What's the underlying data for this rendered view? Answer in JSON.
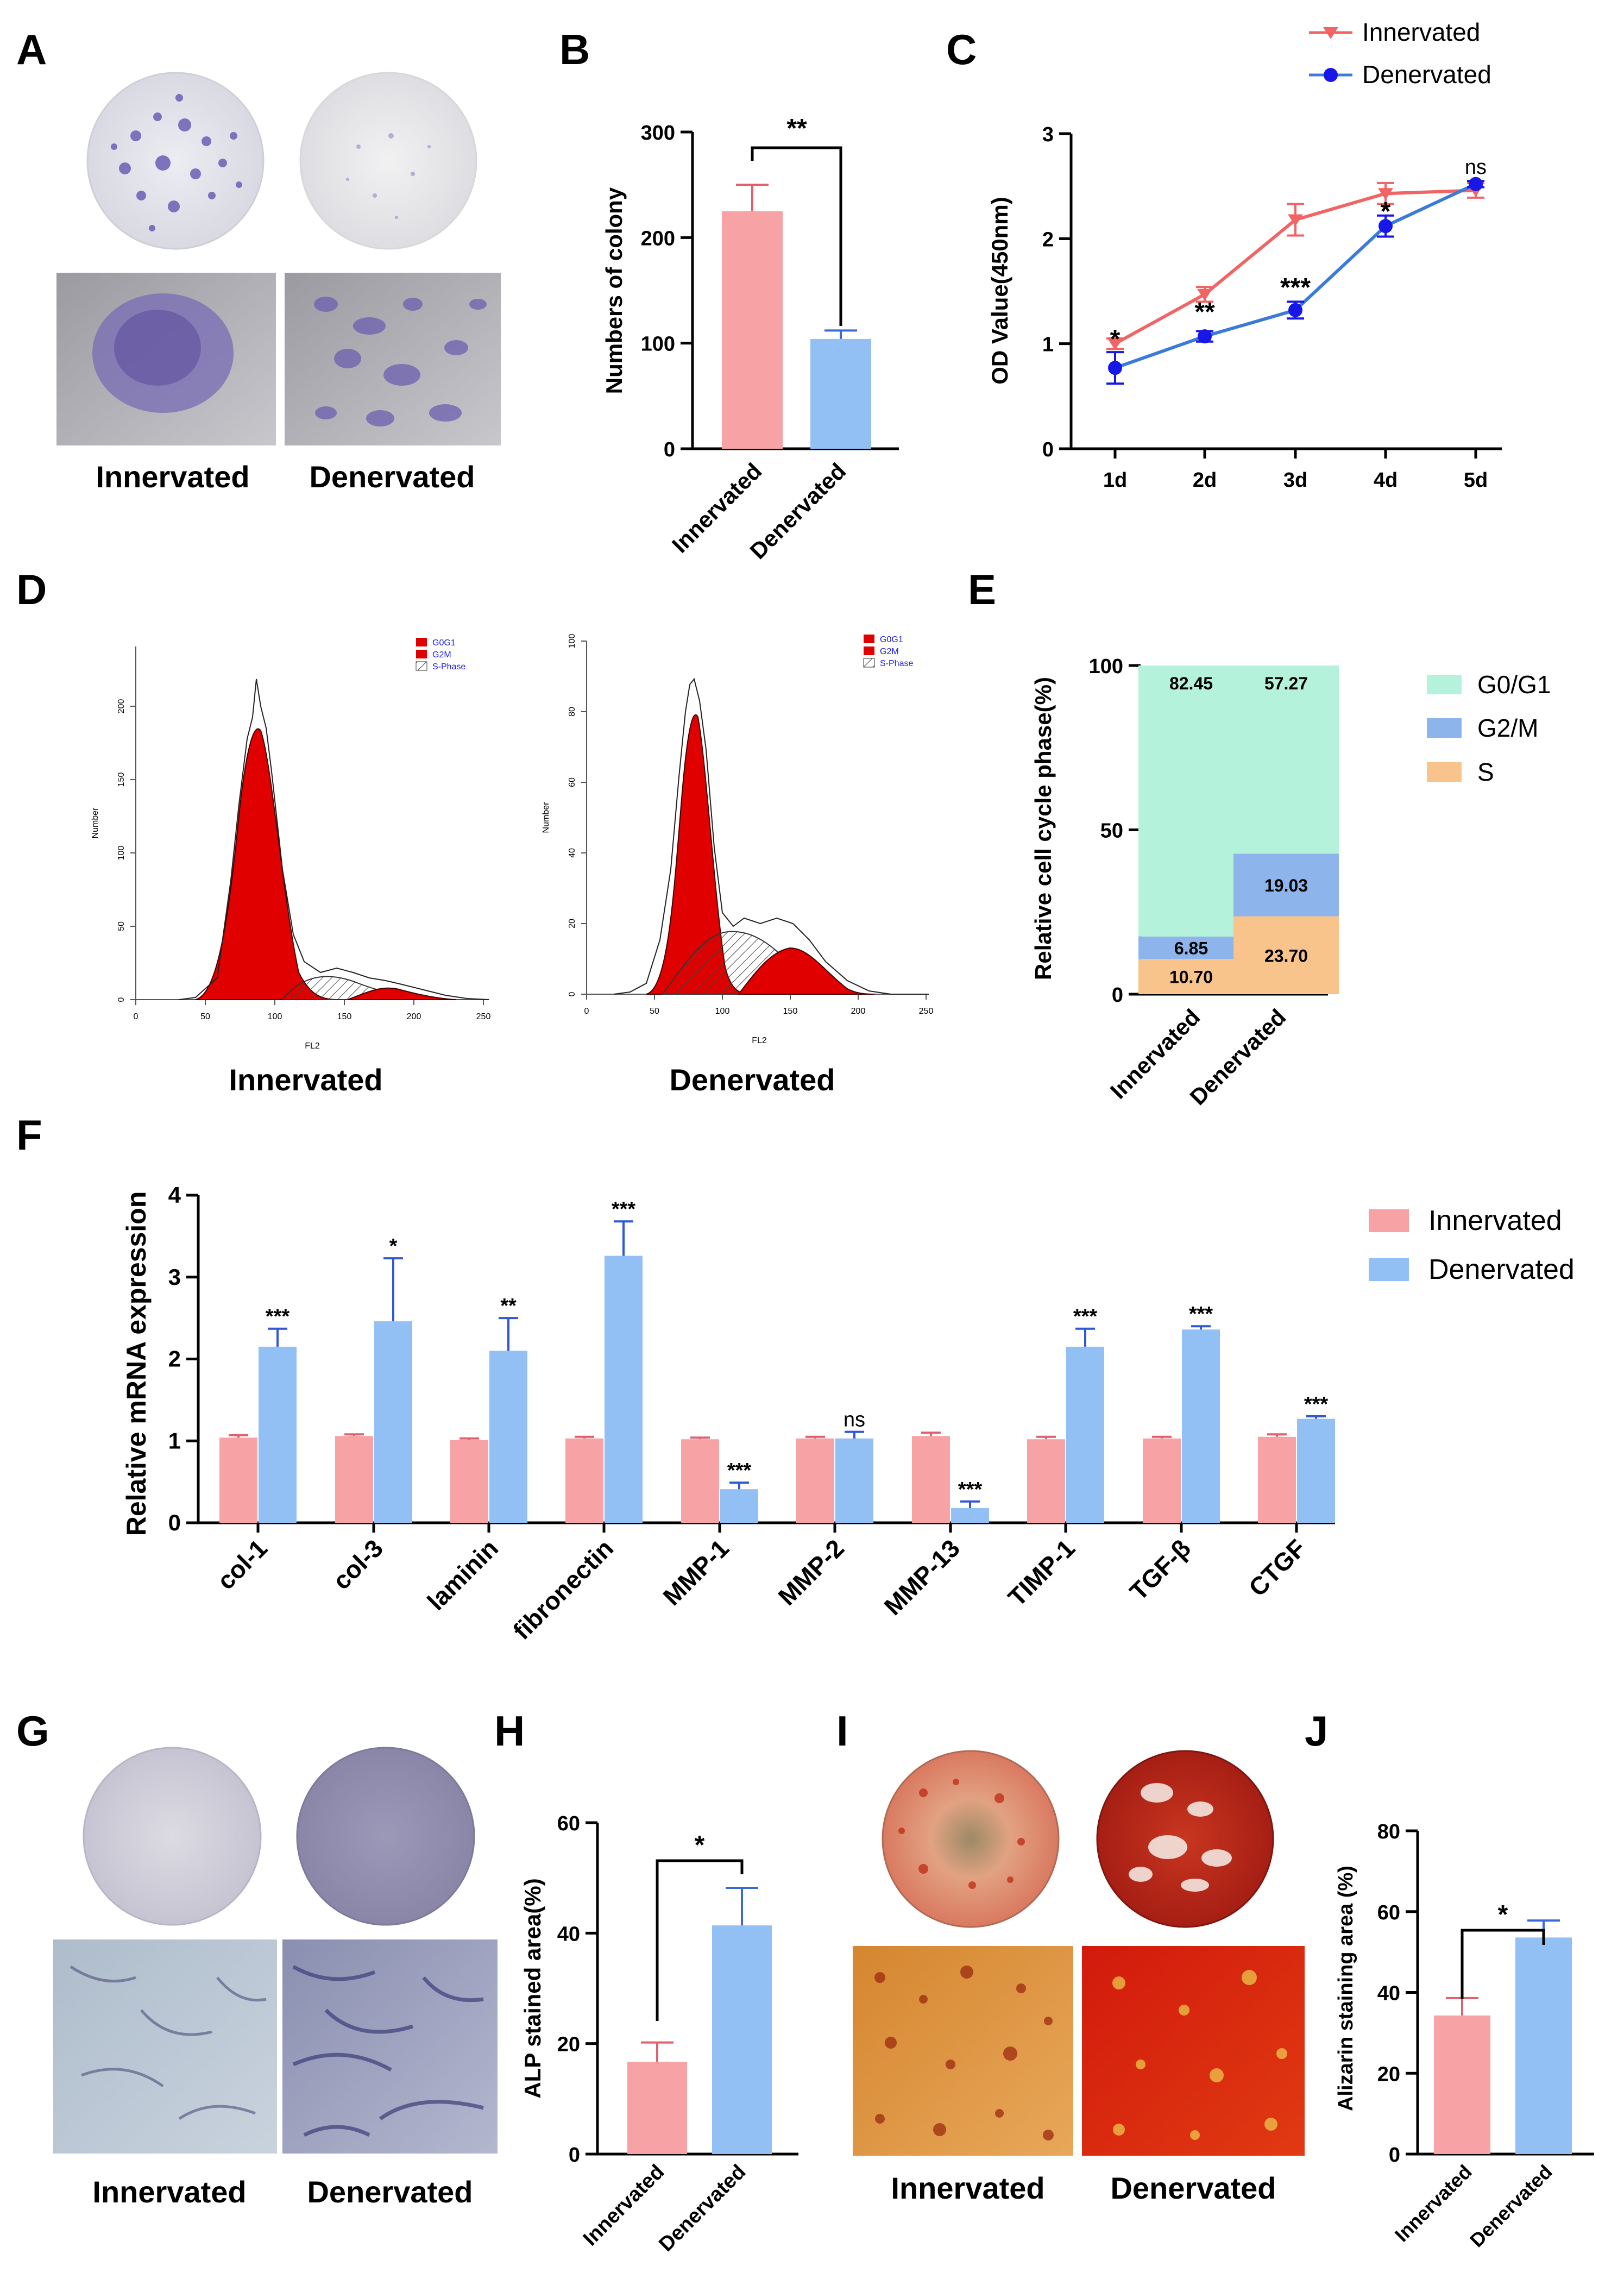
{
  "panels": {
    "A": "A",
    "B": "B",
    "C": "C",
    "D": "D",
    "E": "E",
    "F": "F",
    "G": "G",
    "H": "H",
    "I": "I",
    "J": "J"
  },
  "groups": {
    "innervated": "Innervated",
    "denervated": "Denervated"
  },
  "colors": {
    "pink": "#f7a3a6",
    "blue": "#92bff4",
    "line_red": "#f26464",
    "line_blue": "#1717e8",
    "histo_red": "#e00000",
    "g0": "#b5f2dc",
    "g2": "#8db5ec",
    "s": "#f8c48c"
  },
  "panel_b": {
    "ylabel": "Numbers of colony",
    "yticks": [
      "0",
      "100",
      "200",
      "300"
    ],
    "sig": "**"
  },
  "panel_c": {
    "ylabel": "OD Value(450nm)",
    "yticks": [
      "0",
      "1",
      "2",
      "3"
    ],
    "xticks": [
      "1d",
      "2d",
      "3d",
      "4d",
      "5d"
    ],
    "sig": [
      "*",
      "**",
      "***",
      "*",
      "ns"
    ],
    "legend": [
      "Innervated",
      "Denervated"
    ]
  },
  "panel_d": {
    "left": {
      "ylabel": "Number",
      "xlabel": "FL2",
      "yticks": [
        "0",
        "50",
        "100",
        "150",
        "200"
      ],
      "xticks": [
        "0",
        "50",
        "100",
        "150",
        "200",
        "250"
      ]
    },
    "right": {
      "ylabel": "Number",
      "xlabel": "FL2",
      "yticks": [
        "0",
        "20",
        "40",
        "60",
        "80",
        "100"
      ],
      "xticks": [
        "0",
        "50",
        "100",
        "150",
        "200",
        "250"
      ]
    },
    "legend": [
      "G0G1",
      "G2M",
      "S-Phase"
    ]
  },
  "panel_e": {
    "ylabel": "Relative cell cycle phase(%)",
    "yticks": [
      "0",
      "50",
      "100"
    ],
    "legend": [
      "G0/G1",
      "G2/M",
      "S"
    ]
  },
  "panel_f": {
    "ylabel": "Relative mRNA expression",
    "yticks": [
      "0",
      "1",
      "2",
      "3",
      "4"
    ]
  },
  "panel_h": {
    "ylabel": "ALP stained area(%)",
    "yticks": [
      "0",
      "20",
      "40",
      "60"
    ],
    "sig": "*"
  },
  "panel_j": {
    "ylabel": "Alizarin staining area (%)",
    "yticks": [
      "0",
      "20",
      "40",
      "60",
      "80"
    ],
    "sig": "*"
  },
  "chart_data": [
    {
      "type": "bar",
      "title": "B",
      "categories": [
        "Innervated",
        "Denervated"
      ],
      "values": [
        225,
        104
      ],
      "errors": [
        25,
        8
      ],
      "ylabel": "Numbers of colony",
      "ylim": [
        0,
        300
      ]
    },
    {
      "type": "line",
      "title": "C",
      "x": [
        "1d",
        "2d",
        "3d",
        "4d",
        "5d"
      ],
      "series": [
        {
          "name": "Innervated",
          "values": [
            1.0,
            1.47,
            2.18,
            2.43,
            2.46
          ],
          "errors": [
            0.05,
            0.07,
            0.15,
            0.1,
            0.07
          ]
        },
        {
          "name": "Denervated",
          "values": [
            0.77,
            1.07,
            1.32,
            2.12,
            2.52
          ],
          "errors": [
            0.15,
            0.05,
            0.08,
            0.1,
            0.03
          ]
        }
      ],
      "ylabel": "OD Value(450nm)",
      "ylim": [
        0,
        3
      ],
      "annotations": [
        "*",
        "**",
        "***",
        "*",
        "ns"
      ]
    },
    {
      "type": "bar",
      "title": "E",
      "categories": [
        "Innervated",
        "Denervated"
      ],
      "series": [
        {
          "name": "S",
          "values": [
            10.7,
            23.7
          ]
        },
        {
          "name": "G2/M",
          "values": [
            6.85,
            19.03
          ]
        },
        {
          "name": "G0/G1",
          "values": [
            82.45,
            57.27
          ]
        }
      ],
      "ylabel": "Relative cell cycle phase(%)",
      "ylim": [
        0,
        100
      ],
      "stacked": true
    },
    {
      "type": "bar",
      "title": "F",
      "categories": [
        "col-1",
        "col-3",
        "laminin",
        "fibronectin",
        "MMP-1",
        "MMP-2",
        "MMP-13",
        "TIMP-1",
        "TGF-β",
        "CTGF"
      ],
      "series": [
        {
          "name": "Innervated",
          "values": [
            1.04,
            1.06,
            1.01,
            1.03,
            1.02,
            1.03,
            1.06,
            1.02,
            1.03,
            1.05
          ],
          "errors": [
            0.03,
            0.02,
            0.02,
            0.02,
            0.02,
            0.02,
            0.04,
            0.03,
            0.02,
            0.03
          ]
        },
        {
          "name": "Denervated",
          "values": [
            2.15,
            2.46,
            2.1,
            3.26,
            0.41,
            1.03,
            0.18,
            2.15,
            2.36,
            1.27
          ],
          "errors": [
            0.22,
            0.77,
            0.4,
            0.42,
            0.08,
            0.08,
            0.08,
            0.22,
            0.04,
            0.03
          ]
        }
      ],
      "annotations": [
        "***",
        "*",
        "**",
        "***",
        "***",
        "ns",
        "***",
        "***",
        "***",
        "***"
      ],
      "ylabel": "Relative mRNA expression",
      "ylim": [
        0,
        4
      ]
    },
    {
      "type": "bar",
      "title": "H",
      "categories": [
        "Innervated",
        "Denervated"
      ],
      "values": [
        16.7,
        41.4
      ],
      "errors": [
        3.5,
        6.8
      ],
      "ylabel": "ALP stained area(%)",
      "ylim": [
        0,
        60
      ]
    },
    {
      "type": "bar",
      "title": "J",
      "categories": [
        "Innervated",
        "Denervated"
      ],
      "values": [
        34.3,
        53.6
      ],
      "errors": [
        4.3,
        4.2
      ],
      "ylabel": "Alizarin staining area (%)",
      "ylim": [
        0,
        80
      ]
    }
  ]
}
